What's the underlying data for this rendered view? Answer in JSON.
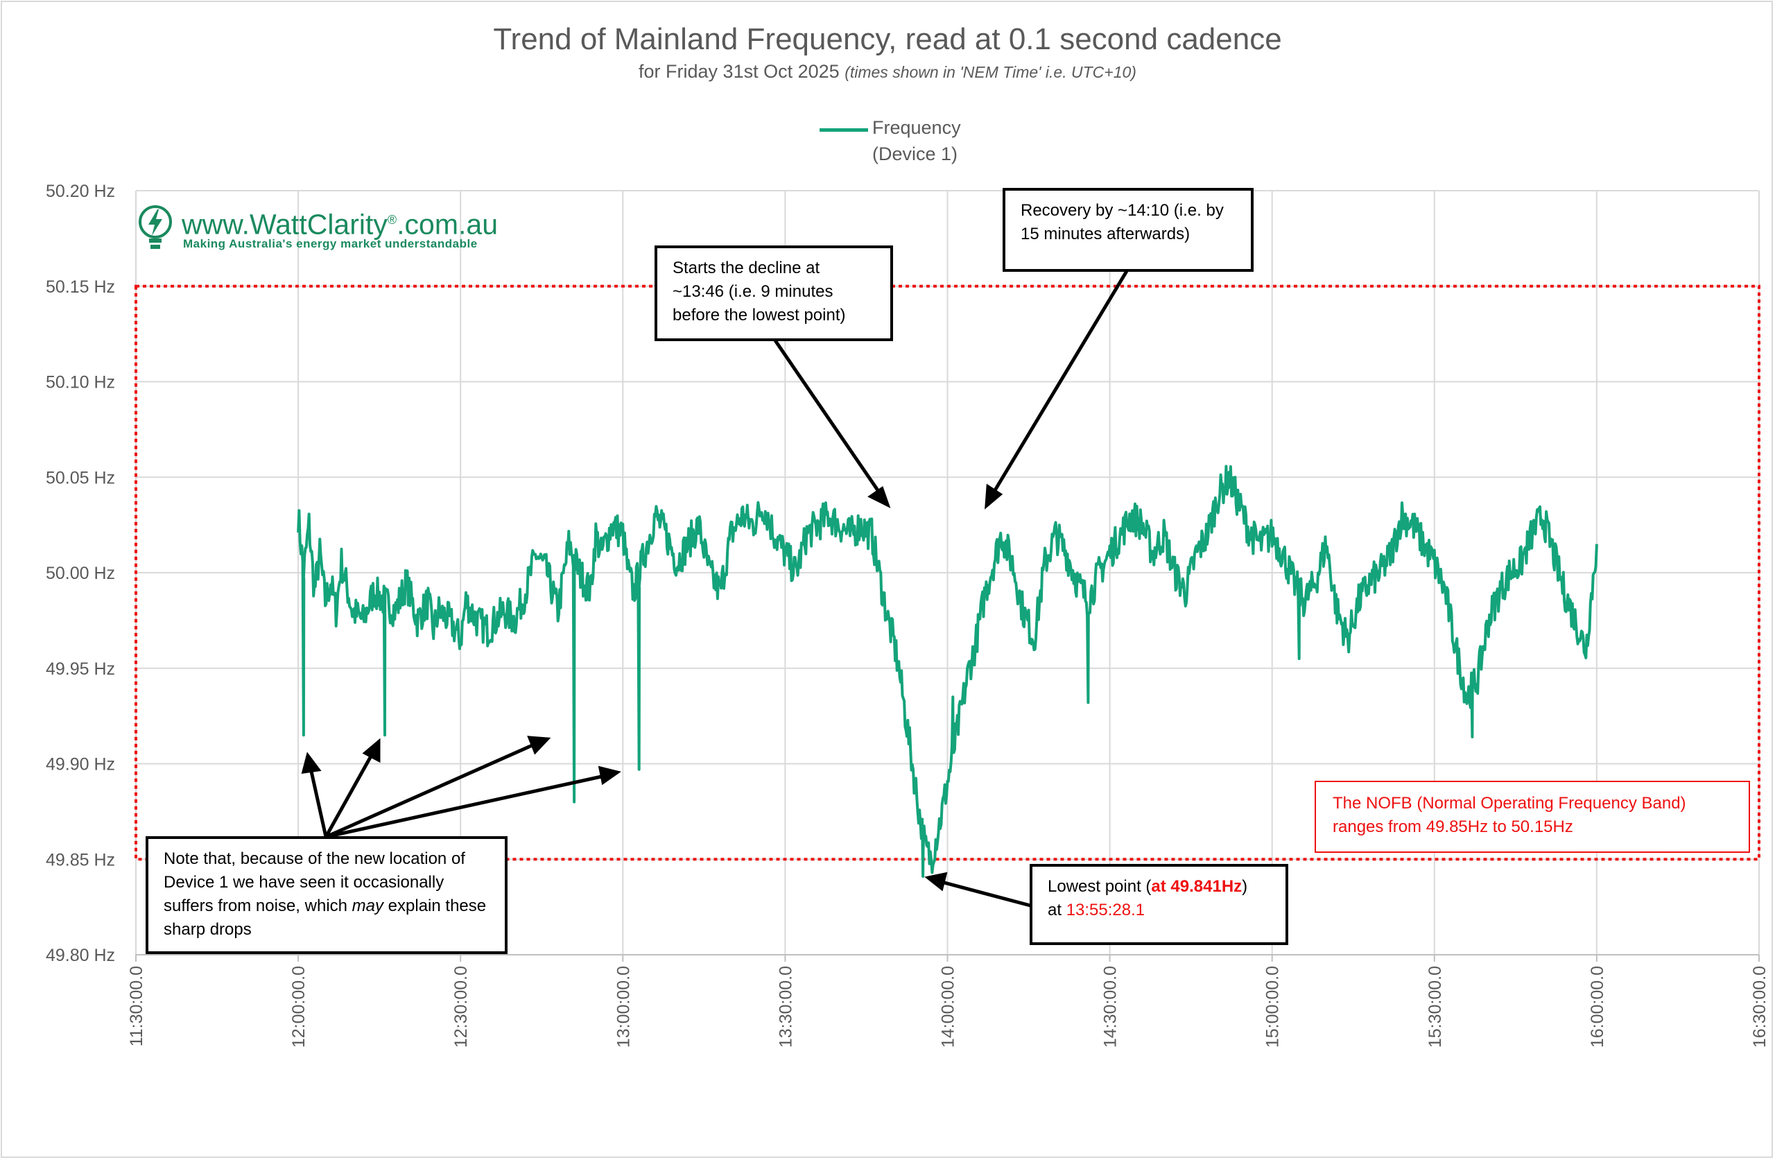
{
  "chart_data": {
    "type": "line",
    "title": "Trend of Mainland Frequency, read at 0.1 second cadence",
    "subtitle": "for Friday 31st Oct 2025",
    "subtitle_note": "(times shown in 'NEM Time' i.e. UTC+10)",
    "xlabel": "",
    "ylabel": "",
    "x_ticks": [
      "11:30:00.0",
      "12:00:00.0",
      "12:30:00.0",
      "13:00:00.0",
      "13:30:00.0",
      "14:00:00.0",
      "14:30:00.0",
      "15:00:00.0",
      "15:30:00.0",
      "16:00:00.0",
      "16:30:00.0"
    ],
    "y_ticks": [
      "49.80 Hz",
      "49.85 Hz",
      "49.90 Hz",
      "49.95 Hz",
      "50.00 Hz",
      "50.05 Hz",
      "50.10 Hz",
      "50.15 Hz",
      "50.20 Hz"
    ],
    "xlim": [
      "11:30:00.0",
      "16:30:00.0"
    ],
    "ylim": [
      49.8,
      50.2
    ],
    "grid": true,
    "legend_position": "top",
    "series": [
      {
        "name": "Frequency (Device 1)",
        "color": "#14a37a",
        "x": [
          "12:00",
          "12:01",
          "12:02",
          "12:03",
          "12:04",
          "12:05",
          "12:06",
          "12:07",
          "12:08",
          "12:10",
          "12:12",
          "12:14",
          "12:16",
          "12:18",
          "12:20",
          "12:22",
          "12:24",
          "12:25",
          "12:26",
          "12:28",
          "12:30",
          "12:31",
          "12:33",
          "12:35",
          "12:38",
          "12:40",
          "12:42",
          "12:44",
          "12:46",
          "12:48",
          "12:50",
          "12:52",
          "12:54",
          "12:55",
          "12:56",
          "12:58",
          "13:00",
          "13:01",
          "13:02",
          "13:04",
          "13:06",
          "13:08",
          "13:10",
          "13:12",
          "13:14",
          "13:16",
          "13:18",
          "13:20",
          "13:22",
          "13:24",
          "13:26",
          "13:28",
          "13:30",
          "13:32",
          "13:34",
          "13:36",
          "13:38",
          "13:40",
          "13:42",
          "13:44",
          "13:45",
          "13:46",
          "13:47",
          "13:48",
          "13:49",
          "13:50",
          "13:51",
          "13:52",
          "13:53",
          "13:54",
          "13:55",
          "13:56",
          "13:57",
          "13:58",
          "13:59",
          "14:00",
          "14:01",
          "14:02",
          "14:03",
          "14:04",
          "14:05",
          "14:06",
          "14:07",
          "14:08",
          "14:09",
          "14:10",
          "14:12",
          "14:14",
          "14:16",
          "14:18",
          "14:20",
          "14:22",
          "14:24",
          "14:26",
          "14:28",
          "14:30",
          "14:32",
          "14:34",
          "14:36",
          "14:38",
          "14:40",
          "14:42",
          "14:44",
          "14:46",
          "14:48",
          "14:50",
          "14:52",
          "14:54",
          "14:56",
          "14:58",
          "15:00",
          "15:02",
          "15:04",
          "15:06",
          "15:08",
          "15:10",
          "15:12",
          "15:14",
          "15:16",
          "15:18",
          "15:20",
          "15:22",
          "15:24",
          "15:26",
          "15:28",
          "15:30",
          "15:32",
          "15:34",
          "15:36",
          "15:38",
          "15:40",
          "15:42",
          "15:44",
          "15:46",
          "15:48",
          "15:50",
          "15:52",
          "15:54",
          "15:56",
          "15:58",
          "16:00"
        ],
        "values": [
          50.03,
          50.0,
          50.025,
          49.99,
          50.01,
          49.985,
          49.995,
          49.98,
          50.005,
          49.98,
          49.975,
          49.99,
          49.985,
          49.98,
          49.995,
          49.975,
          49.985,
          49.97,
          49.98,
          49.975,
          49.965,
          49.985,
          49.975,
          49.97,
          49.98,
          49.975,
          49.99,
          50.01,
          50.0,
          49.98,
          50.015,
          50.0,
          49.99,
          50.02,
          50.01,
          50.025,
          50.02,
          50.0,
          49.99,
          50.01,
          50.03,
          50.02,
          50.005,
          50.015,
          50.025,
          50.0,
          49.99,
          50.02,
          50.03,
          50.025,
          50.035,
          50.02,
          50.01,
          50.0,
          50.02,
          50.025,
          50.03,
          50.025,
          50.02,
          50.025,
          50.022,
          50.02,
          50.005,
          49.99,
          49.975,
          49.965,
          49.95,
          49.93,
          49.91,
          49.89,
          49.87,
          49.855,
          49.85,
          49.862,
          49.875,
          49.89,
          49.905,
          49.92,
          49.935,
          49.95,
          49.96,
          49.975,
          49.99,
          50.0,
          50.01,
          50.02,
          50.005,
          49.98,
          49.965,
          50.005,
          50.02,
          50.01,
          49.995,
          49.985,
          50.0,
          50.01,
          50.02,
          50.03,
          50.025,
          50.01,
          50.02,
          50.0,
          49.99,
          50.01,
          50.02,
          50.04,
          50.05,
          50.035,
          50.02,
          50.015,
          50.02,
          50.01,
          49.995,
          49.985,
          49.995,
          50.015,
          49.98,
          49.965,
          49.985,
          49.995,
          50.0,
          50.01,
          50.03,
          50.025,
          50.015,
          50.005,
          49.99,
          49.96,
          49.935,
          49.945,
          49.975,
          49.99,
          50.0,
          50.005,
          50.02,
          50.03,
          50.01,
          49.99,
          49.975,
          49.96,
          50.015
        ],
        "lowest_point": {
          "time": "13:55:28.1",
          "value": 49.841
        }
      }
    ],
    "spikes": [
      {
        "x": "12:01",
        "min": 49.915
      },
      {
        "x": "12:16",
        "min": 49.915
      },
      {
        "x": "12:51",
        "min": 49.88
      },
      {
        "x": "13:03",
        "min": 49.897
      },
      {
        "x": "14:01",
        "min": 49.935
      },
      {
        "x": "14:26",
        "min": 49.932
      },
      {
        "x": "15:05",
        "min": 49.955
      },
      {
        "x": "15:37",
        "min": 49.914
      }
    ],
    "nofb_band": {
      "min": 49.85,
      "max": 50.15
    }
  },
  "legend": {
    "label": "Frequency\n(Device 1)"
  },
  "logo": {
    "url": "www.WattClarity",
    "url_mark": "®",
    "url_suffix": ".com.au",
    "tagline": "Making Australia's energy market understandable"
  },
  "annotations": {
    "decline": {
      "text": "Starts the decline at ~13:46 (i.e. 9 minutes before the lowest point)"
    },
    "recovery": {
      "text": "Recovery by ~14:10 (i.e. by 15 minutes afterwards)"
    },
    "noise": {
      "text_a": "Note that, because of the new location of Device 1 we have seen it occasionally suffers from noise, which ",
      "text_em": "may",
      "text_b": " explain these sharp drops"
    },
    "lowest": {
      "text_a": "Lowest point (",
      "text_bold": "at 49.841Hz",
      "text_b": ")",
      "text_c": "at ",
      "text_time": "13:55:28.1"
    },
    "nofb": {
      "text": "The NOFB  (Normal Operating Frequency Band) ranges from 49.85Hz to 50.15Hz"
    }
  }
}
